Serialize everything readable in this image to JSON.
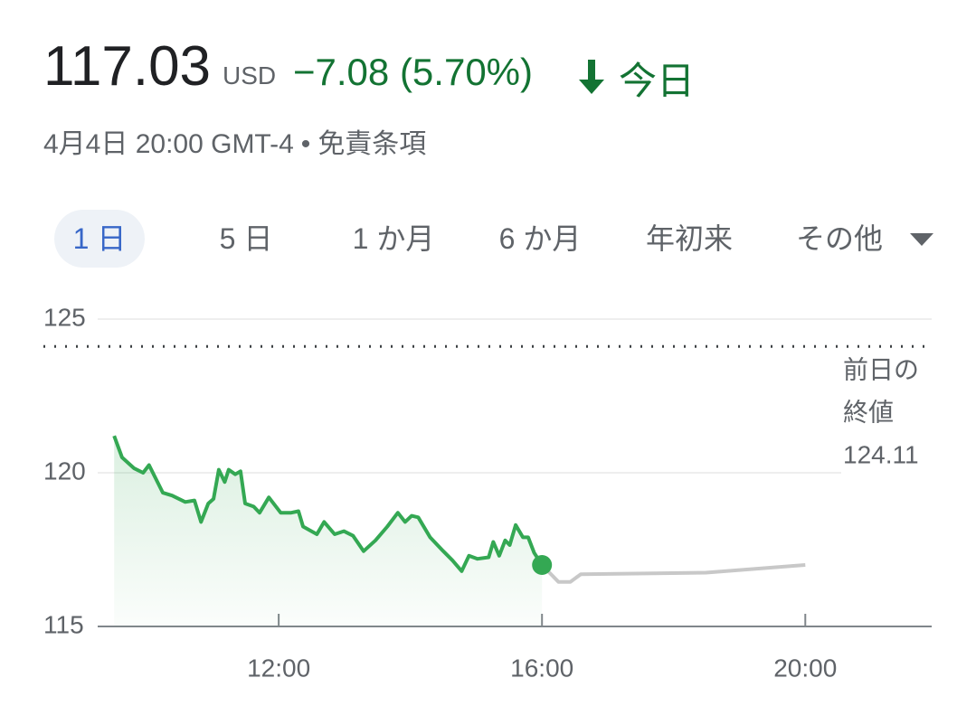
{
  "header": {
    "price": "117.03",
    "currency": "USD",
    "change": "−7.08 (5.70%)",
    "period": "今日",
    "timestamp": "4月4日 20:00 GMT-4",
    "separator": "•",
    "disclaimer": "免責条項"
  },
  "tabs": [
    "1 日",
    "5 日",
    "1 か月",
    "6 か月",
    "年初来",
    "その他"
  ],
  "chart_data": {
    "type": "line",
    "series": [
      {
        "color": "#34a853",
        "x": [
          9.5,
          9.62,
          9.8,
          9.94,
          10.03,
          10.24,
          10.38,
          10.58,
          10.72,
          10.82,
          10.93,
          11.01,
          11.09,
          11.18,
          11.24,
          11.34,
          11.42,
          11.49,
          11.62,
          11.71,
          11.85,
          12.03,
          12.19,
          12.3,
          12.37,
          12.58,
          12.69,
          12.85,
          12.99,
          13.13,
          13.29,
          13.47,
          13.65,
          13.81,
          13.92,
          14.02,
          14.12,
          14.3,
          14.5,
          14.64,
          14.78,
          14.89,
          15.02,
          15.19,
          15.26,
          15.35,
          15.44,
          15.51,
          15.6,
          15.71,
          15.79,
          15.88,
          16.0
        ],
        "values": [
          121.2,
          120.5,
          120.15,
          120.0,
          120.25,
          119.35,
          119.26,
          119.05,
          119.1,
          118.4,
          119.0,
          119.15,
          120.1,
          119.7,
          120.1,
          119.95,
          120.05,
          119.0,
          118.9,
          118.7,
          119.2,
          118.7,
          118.7,
          118.75,
          118.25,
          118.0,
          118.4,
          118.0,
          118.1,
          117.95,
          117.45,
          117.8,
          118.25,
          118.7,
          118.4,
          118.6,
          118.55,
          117.9,
          117.45,
          117.15,
          116.8,
          117.3,
          117.2,
          117.25,
          117.75,
          117.3,
          117.8,
          117.65,
          118.3,
          117.9,
          117.9,
          117.4,
          117.0
        ]
      },
      {
        "color": "#c8c8c8",
        "x": [
          16.0,
          16.25,
          16.43,
          16.59,
          18.49,
          20.0
        ],
        "values": [
          117.0,
          116.45,
          116.45,
          116.7,
          116.75,
          117.0
        ]
      }
    ],
    "reference_line": {
      "value": 124.11,
      "label_lines": [
        "前日の",
        "終値"
      ]
    },
    "xlim": [
      9.25,
      21.92
    ],
    "xticks": [
      {
        "value": 12,
        "label": "12:00"
      },
      {
        "value": 16,
        "label": "16:00"
      },
      {
        "value": 20,
        "label": "20:00"
      }
    ],
    "ylim": [
      115,
      125
    ],
    "yticks": [
      115,
      120,
      125
    ],
    "grid": true
  }
}
